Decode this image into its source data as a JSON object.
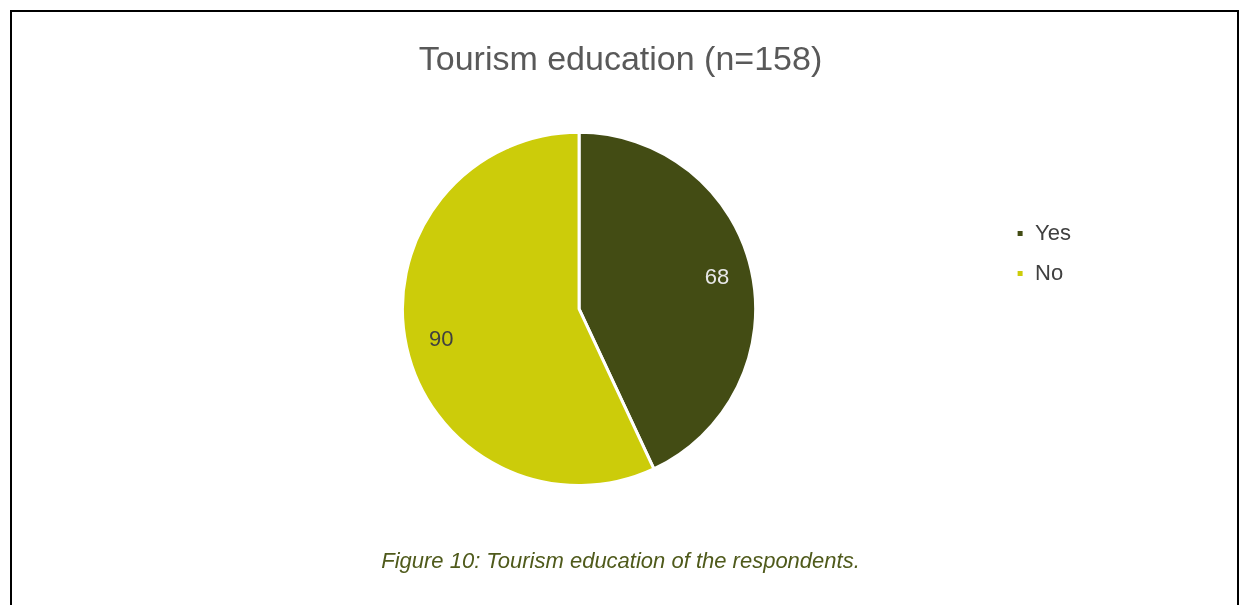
{
  "chart_data": {
    "type": "pie",
    "title": "Tourism education (n=158)",
    "categories": [
      "Yes",
      "No"
    ],
    "values": [
      68,
      90
    ],
    "colors": [
      "#434c14",
      "#cccc0a"
    ],
    "data_labels": true,
    "legend": "right",
    "annotations": [
      "Figure 10: Tourism education of the respondents."
    ]
  }
}
